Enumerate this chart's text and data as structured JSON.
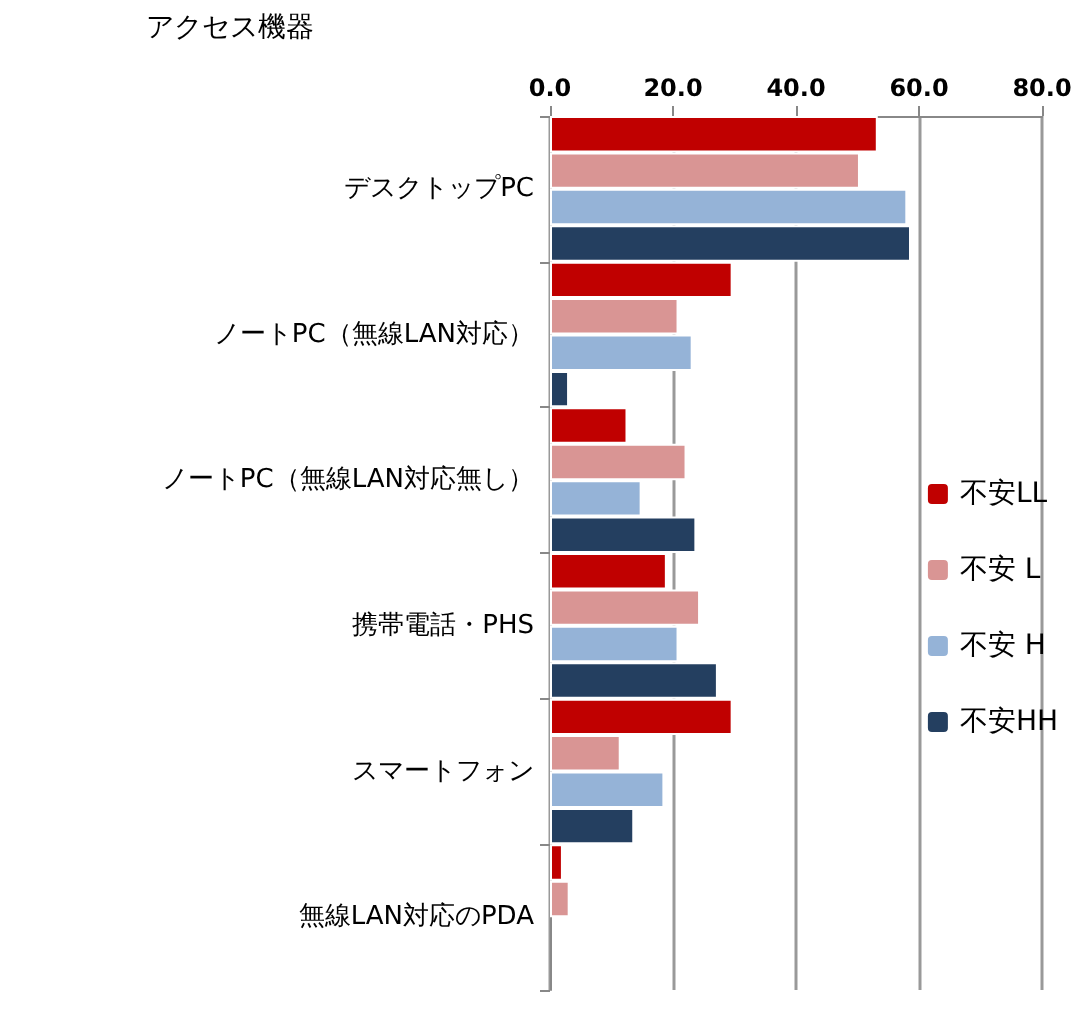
{
  "chart_data": {
    "type": "bar",
    "orientation": "horizontal",
    "title": "アクセス機器",
    "categories": [
      "デスクトップPC",
      "ノートPC（無線LAN対応）",
      "ノートPC（無線LAN対応無し）",
      "携帯電話・PHS",
      "スマートフォン",
      "無線LAN対応のPDA"
    ],
    "series": [
      {
        "name": "不安LL",
        "color": "#c00000",
        "values": [
          53.3,
          29.7,
          12.6,
          19.0,
          29.7,
          2.1
        ]
      },
      {
        "name": "不安 L",
        "color": "#d99594",
        "values": [
          50.4,
          20.9,
          22.2,
          24.4,
          11.5,
          3.2
        ]
      },
      {
        "name": "不安 H",
        "color": "#95b3d7",
        "values": [
          58.1,
          23.2,
          14.9,
          20.9,
          18.6,
          null
        ]
      },
      {
        "name": "不安HH",
        "color": "#243f60",
        "values": [
          58.7,
          3.1,
          23.8,
          27.3,
          13.7,
          null
        ]
      }
    ],
    "xlim": [
      0,
      80
    ],
    "xticks": [
      {
        "value": 0,
        "label": "0.0"
      },
      {
        "value": 20,
        "label": "20.0"
      },
      {
        "value": 40,
        "label": "40.0"
      },
      {
        "value": 60,
        "label": "60.0"
      },
      {
        "value": 80,
        "label": "80.0"
      }
    ],
    "grid": "x",
    "legend": "right"
  }
}
